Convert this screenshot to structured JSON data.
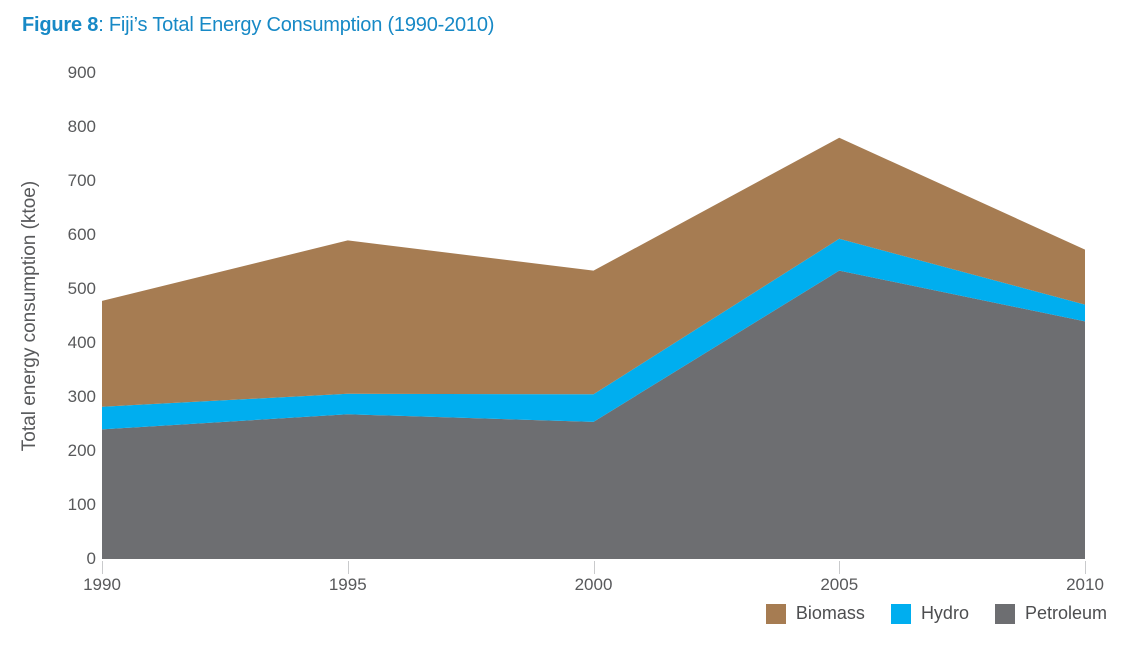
{
  "figure": {
    "label": "Figure 8",
    "title": ": Fiji’s Total Energy Consumption (1990-2010)"
  },
  "colors": {
    "title_blue": "#1789C6",
    "axis_text": "#58595B",
    "tick_mark": "#C9CACC",
    "background": "#FFFFFF"
  },
  "chart_data": {
    "type": "area",
    "stacked": true,
    "title": "Figure 8: Fiji’s Total Energy Consumption (1990-2010)",
    "xlabel": "",
    "ylabel": "Total energy consumption (ktoe)",
    "x": [
      1990,
      1995,
      2000,
      2005,
      2010
    ],
    "xticks": [
      "1990",
      "1995",
      "2000",
      "2005",
      "2010"
    ],
    "ylim": [
      0,
      900
    ],
    "yticks": [
      0,
      100,
      200,
      300,
      400,
      500,
      600,
      700,
      800,
      900
    ],
    "grid": false,
    "series": [
      {
        "name": "Petroleum",
        "color": "#6D6E71",
        "values": [
          240,
          268,
          254,
          534,
          440
        ]
      },
      {
        "name": "Hydro",
        "color": "#00AEEF",
        "values": [
          42,
          38,
          51,
          59,
          31
        ]
      },
      {
        "name": "Biomass",
        "color": "#A67C52",
        "values": [
          196,
          284,
          229,
          187,
          102
        ]
      }
    ],
    "totals": [
      478,
      590,
      534,
      780,
      573
    ],
    "legend": {
      "position": "bottom-right",
      "order": [
        "Biomass",
        "Hydro",
        "Petroleum"
      ]
    }
  }
}
